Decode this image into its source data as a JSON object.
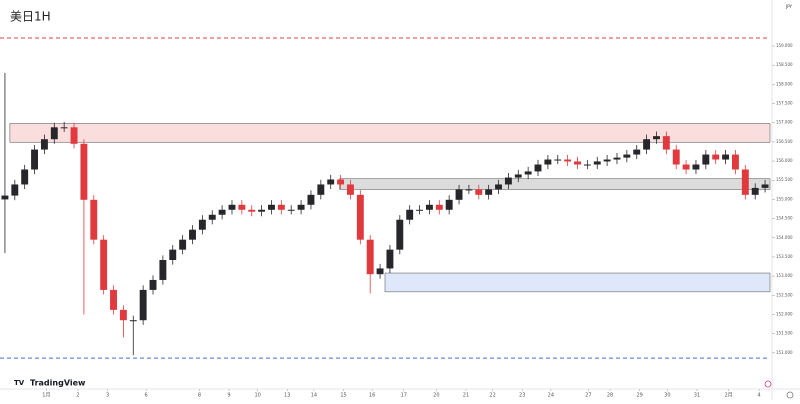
{
  "chart_data": {
    "type": "candlestick",
    "title": "美日1H",
    "currency": "JPY",
    "brand": "TradingView",
    "xlim": [
      0,
      78
    ],
    "ylim": [
      149.9,
      160.2
    ],
    "yticks": [
      {
        "value": 151,
        "label": "151.000"
      },
      {
        "value": 151.5,
        "label": "151.500"
      },
      {
        "value": 152,
        "label": "152.000"
      },
      {
        "value": 152.5,
        "label": "152.500"
      },
      {
        "value": 153,
        "label": "153.000"
      },
      {
        "value": 153.5,
        "label": "153.500"
      },
      {
        "value": 154,
        "label": "154.000"
      },
      {
        "value": 154.5,
        "label": "154.500"
      },
      {
        "value": 155,
        "label": "155.000"
      },
      {
        "value": 155.5,
        "label": "155.500"
      },
      {
        "value": 156,
        "label": "156.000"
      },
      {
        "value": 156.5,
        "label": "156.500"
      },
      {
        "value": 157,
        "label": "157.000"
      },
      {
        "value": 157.5,
        "label": "157.500"
      },
      {
        "value": 158,
        "label": "158.000"
      },
      {
        "value": 158.5,
        "label": "158.500"
      },
      {
        "value": 159,
        "label": "159.000"
      }
    ],
    "xticks": [
      {
        "value": 4.7,
        "label": "1月"
      },
      {
        "value": 7.9,
        "label": "2"
      },
      {
        "value": 10.9,
        "label": "3"
      },
      {
        "value": 14.8,
        "label": "6"
      },
      {
        "value": 20.2,
        "label": "8"
      },
      {
        "value": 23.2,
        "label": "9"
      },
      {
        "value": 26.1,
        "label": "10"
      },
      {
        "value": 29.1,
        "label": "13"
      },
      {
        "value": 31.8,
        "label": "14"
      },
      {
        "value": 34.8,
        "label": "15"
      },
      {
        "value": 37.7,
        "label": "16"
      },
      {
        "value": 40.9,
        "label": "17"
      },
      {
        "value": 44.2,
        "label": "20"
      },
      {
        "value": 47.2,
        "label": "21"
      },
      {
        "value": 49.9,
        "label": "22"
      },
      {
        "value": 52.9,
        "label": "23"
      },
      {
        "value": 55.8,
        "label": "24"
      },
      {
        "value": 59.6,
        "label": "27"
      },
      {
        "value": 61.8,
        "label": "28"
      },
      {
        "value": 64.8,
        "label": "29"
      },
      {
        "value": 67.6,
        "label": "30"
      },
      {
        "value": 70.6,
        "label": "31"
      },
      {
        "value": 73.8,
        "label": "2月"
      },
      {
        "value": 76.9,
        "label": "4"
      }
    ],
    "up_color": "#26262b",
    "down_color": "#e0393e",
    "open": [
      155.0,
      155.1,
      155.39,
      155.78,
      156.3,
      156.57,
      156.88,
      156.88,
      156.45,
      154.99,
      153.95,
      152.64,
      152.12,
      151.85,
      151.85,
      152.64,
      152.9,
      153.42,
      153.69,
      153.95,
      154.21,
      154.47,
      154.6,
      154.73,
      154.86,
      154.73,
      154.68,
      154.73,
      154.86,
      154.73,
      154.73,
      154.86,
      155.12,
      155.39,
      155.52,
      155.39,
      155.12,
      153.95,
      153.05,
      153.2,
      153.69,
      154.47,
      154.73,
      154.73,
      154.86,
      154.73,
      154.99,
      155.26,
      155.26,
      155.12,
      155.26,
      155.39,
      155.57,
      155.65,
      155.73,
      155.91,
      156.04,
      156.04,
      155.99,
      155.91,
      155.91,
      155.99,
      156.04,
      156.09,
      156.17,
      156.3,
      156.57,
      156.65,
      156.3,
      155.91,
      155.78,
      155.91,
      156.17,
      156.04,
      156.17,
      155.78,
      155.12,
      155.3
    ],
    "high": [
      158.3,
      155.51,
      155.9,
      156.42,
      156.69,
      157.0,
      157.02,
      157.0,
      156.57,
      155.11,
      154.07,
      152.76,
      152.24,
      151.97,
      152.76,
      153.02,
      153.54,
      153.81,
      154.07,
      154.33,
      154.59,
      154.72,
      154.85,
      154.98,
      154.98,
      154.85,
      154.85,
      154.98,
      154.98,
      154.85,
      154.98,
      155.24,
      155.51,
      155.64,
      155.64,
      155.51,
      155.24,
      154.07,
      153.32,
      153.81,
      154.59,
      154.85,
      154.85,
      154.98,
      154.98,
      155.11,
      155.38,
      155.38,
      155.38,
      155.38,
      155.51,
      155.69,
      155.77,
      155.85,
      156.03,
      156.16,
      156.16,
      156.16,
      156.11,
      156.03,
      156.11,
      156.16,
      156.21,
      156.29,
      156.42,
      156.69,
      156.77,
      156.77,
      156.42,
      156.03,
      156.03,
      156.29,
      156.29,
      156.29,
      156.29,
      155.9,
      155.42,
      155.51
    ],
    "low": [
      153.6,
      154.98,
      155.27,
      155.66,
      156.18,
      156.45,
      156.76,
      156.33,
      152.0,
      153.83,
      152.52,
      152.0,
      151.4,
      150.94,
      151.73,
      152.52,
      152.78,
      153.3,
      153.57,
      153.83,
      154.09,
      154.35,
      154.48,
      154.61,
      154.61,
      154.56,
      154.56,
      154.61,
      154.61,
      154.61,
      154.61,
      154.74,
      155.0,
      155.27,
      155.27,
      155.0,
      153.83,
      152.55,
      152.93,
      153.08,
      153.57,
      154.35,
      154.61,
      154.61,
      154.61,
      154.61,
      154.87,
      155.14,
      155.0,
      155.0,
      155.14,
      155.27,
      155.45,
      155.53,
      155.61,
      155.79,
      155.92,
      155.87,
      155.79,
      155.79,
      155.79,
      155.87,
      155.92,
      155.97,
      156.05,
      156.18,
      156.45,
      156.18,
      155.79,
      155.66,
      155.66,
      155.79,
      155.92,
      155.92,
      155.66,
      155.0,
      155.0,
      155.18
    ],
    "close": [
      155.1,
      155.39,
      155.78,
      156.3,
      156.57,
      156.88,
      156.88,
      156.45,
      154.99,
      153.95,
      152.64,
      152.12,
      151.85,
      151.85,
      152.64,
      152.9,
      153.42,
      153.69,
      153.95,
      154.21,
      154.47,
      154.6,
      154.73,
      154.86,
      154.73,
      154.68,
      154.73,
      154.86,
      154.73,
      154.73,
      154.86,
      155.12,
      155.39,
      155.52,
      155.39,
      155.12,
      153.95,
      153.05,
      153.2,
      153.69,
      154.47,
      154.73,
      154.73,
      154.86,
      154.73,
      154.99,
      155.26,
      155.26,
      155.12,
      155.26,
      155.39,
      155.57,
      155.65,
      155.73,
      155.91,
      156.04,
      156.04,
      155.99,
      155.91,
      155.91,
      155.99,
      156.04,
      156.09,
      156.17,
      156.3,
      156.57,
      156.65,
      156.3,
      155.91,
      155.78,
      155.91,
      156.17,
      156.04,
      156.17,
      155.78,
      155.12,
      155.3,
      155.39
    ],
    "zones": [
      {
        "top": 156.98,
        "bottom": 156.49,
        "start": 1,
        "color": "#f9d9d9"
      },
      {
        "top": 155.54,
        "bottom": 155.26,
        "start": 34.4,
        "color": "#d8d8d8"
      },
      {
        "top": 153.08,
        "bottom": 152.59,
        "start": 39,
        "color": "#dce6fb"
      }
    ],
    "levels": [
      {
        "value": 159.21,
        "color": "#e04545"
      },
      {
        "value": 150.86,
        "color": "#3d6fe0"
      }
    ]
  }
}
